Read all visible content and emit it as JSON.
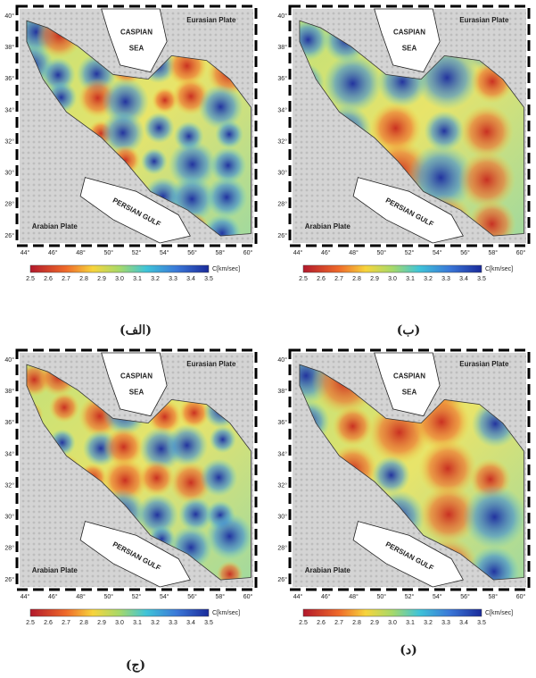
{
  "map": {
    "lat_labels": [
      "40°",
      "38°",
      "36°",
      "34°",
      "32°",
      "30°",
      "28°",
      "26°"
    ],
    "lon_labels": [
      "44°",
      "46°",
      "48°",
      "50°",
      "52°",
      "54°",
      "56°",
      "58°",
      "60°"
    ],
    "labels": {
      "caspian": "CASPIAN",
      "sea": "SEA",
      "eurasian": "Eurasian Plate",
      "arabian": "Arabian Plate",
      "gulf": "PERSIAN GULF"
    },
    "colorbar": {
      "ticks": [
        "2.5",
        "2.6",
        "2.7",
        "2.8",
        "2.9",
        "3.0",
        "3.1",
        "3.2",
        "3.3",
        "3.4",
        "3.5"
      ],
      "unit": "C[km/sec]"
    }
  },
  "panels": [
    {
      "caption": "(الف)"
    },
    {
      "caption": "(ب)"
    },
    {
      "caption": "(ج)"
    },
    {
      "caption": "(د)"
    }
  ]
}
